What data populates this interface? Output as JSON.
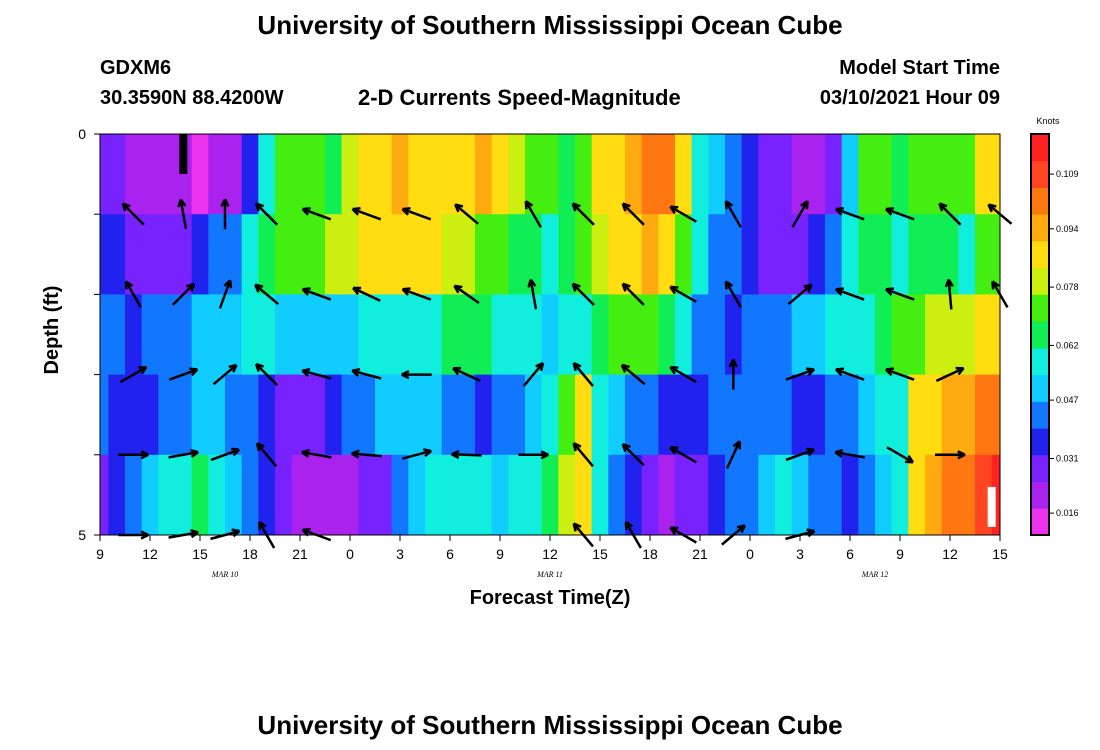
{
  "header": {
    "title_top": "University of Southern Mississippi Ocean Cube",
    "station_id": "GDXM6",
    "station_coords": "30.3590N 88.4200W",
    "chart_title": "2-D Currents Speed-Magnitude",
    "model_start_label": "Model Start Time",
    "model_start_value": "03/10/2021 Hour 09",
    "title_bottom": "University of Southern Mississippi Ocean Cube"
  },
  "colors": {
    "scale": [
      "#ee33ee",
      "#aa22ee",
      "#7722ff",
      "#2222ee",
      "#1177ff",
      "#11ccff",
      "#11eedd",
      "#11ee55",
      "#44ee11",
      "#ccee11",
      "#ffdd11",
      "#ffaa11",
      "#ff7711",
      "#ff4422",
      "#ff2222"
    ],
    "arrow": "#000000"
  },
  "chart_data": {
    "type": "heatmap",
    "title": "2-D Currents Speed-Magnitude",
    "xlabel": "Forecast Time(Z)",
    "ylabel": "Depth (ft)",
    "xlim": [
      0,
      54
    ],
    "ylim": [
      0,
      5
    ],
    "x_ticks": [
      0,
      3,
      6,
      9,
      12,
      15,
      18,
      21,
      24,
      27,
      30,
      33,
      36,
      39,
      42,
      45,
      48,
      51,
      54
    ],
    "x_tick_labels": [
      "9",
      "12",
      "15",
      "18",
      "21",
      "0",
      "3",
      "6",
      "9",
      "12",
      "15",
      "18",
      "21",
      "0",
      "3",
      "6",
      "9",
      "12",
      "15"
    ],
    "day_labels": [
      {
        "x": 7.5,
        "text": "MAR  10"
      },
      {
        "x": 27,
        "text": "MAR  11"
      },
      {
        "x": 46.5,
        "text": "MAR  12"
      }
    ],
    "y_tick_labels": [
      "0",
      "5"
    ],
    "y_minor_ticks": [
      1,
      2,
      3,
      4
    ],
    "colorbar": {
      "label": "Knots",
      "ticks": [
        0.109,
        0.094,
        0.078,
        0.062,
        0.047,
        0.031,
        0.016
      ],
      "tick_labels": [
        "0.109",
        "0.094",
        "0.078",
        "0.062",
        "0.047",
        "0.031",
        "0.016"
      ],
      "range": [
        0.01,
        0.12
      ]
    },
    "depth_levels": [
      0.5,
      1.5,
      2.5,
      3.5,
      4.5
    ],
    "hours": [
      0,
      1,
      2,
      3,
      4,
      5,
      6,
      7,
      8,
      9,
      10,
      11,
      12,
      13,
      14,
      15,
      16,
      17,
      18,
      19,
      20,
      21,
      22,
      23,
      24,
      25,
      26,
      27,
      28,
      29,
      30,
      31,
      32,
      33,
      34,
      35,
      36,
      37,
      38,
      39,
      40,
      41,
      42,
      43,
      44,
      45,
      46,
      47,
      48,
      49,
      50,
      51,
      52,
      53,
      54
    ],
    "speed_knots": [
      [
        0.03,
        0.028,
        0.024,
        0.02,
        0.02,
        0.018,
        0.016,
        0.018,
        0.02,
        0.035,
        0.055,
        0.07,
        0.075,
        0.07,
        0.065,
        0.08,
        0.085,
        0.09,
        0.092,
        0.09,
        0.088,
        0.085,
        0.09,
        0.092,
        0.088,
        0.08,
        0.075,
        0.07,
        0.065,
        0.075,
        0.085,
        0.09,
        0.095,
        0.1,
        0.105,
        0.085,
        0.06,
        0.05,
        0.04,
        0.035,
        0.03,
        0.025,
        0.02,
        0.022,
        0.03,
        0.05,
        0.07,
        0.07,
        0.065,
        0.07,
        0.072,
        0.075,
        0.07,
        0.085,
        0.09
      ],
      [
        0.038,
        0.035,
        0.032,
        0.03,
        0.028,
        0.03,
        0.035,
        0.04,
        0.045,
        0.055,
        0.065,
        0.07,
        0.072,
        0.075,
        0.078,
        0.08,
        0.085,
        0.088,
        0.09,
        0.088,
        0.085,
        0.08,
        0.078,
        0.075,
        0.07,
        0.065,
        0.062,
        0.06,
        0.062,
        0.07,
        0.08,
        0.088,
        0.09,
        0.092,
        0.09,
        0.07,
        0.055,
        0.045,
        0.04,
        0.035,
        0.032,
        0.03,
        0.028,
        0.035,
        0.045,
        0.06,
        0.065,
        0.062,
        0.06,
        0.062,
        0.065,
        0.068,
        0.06,
        0.07,
        0.075
      ],
      [
        0.042,
        0.04,
        0.038,
        0.04,
        0.042,
        0.045,
        0.048,
        0.05,
        0.052,
        0.055,
        0.055,
        0.052,
        0.05,
        0.048,
        0.05,
        0.052,
        0.055,
        0.058,
        0.058,
        0.058,
        0.06,
        0.062,
        0.065,
        0.062,
        0.06,
        0.058,
        0.055,
        0.052,
        0.055,
        0.06,
        0.065,
        0.07,
        0.072,
        0.07,
        0.068,
        0.055,
        0.045,
        0.04,
        0.038,
        0.04,
        0.042,
        0.045,
        0.048,
        0.052,
        0.055,
        0.058,
        0.06,
        0.065,
        0.07,
        0.075,
        0.078,
        0.08,
        0.082,
        0.085,
        0.09
      ],
      [
        0.04,
        0.038,
        0.036,
        0.035,
        0.04,
        0.045,
        0.05,
        0.048,
        0.045,
        0.04,
        0.035,
        0.03,
        0.03,
        0.032,
        0.035,
        0.04,
        0.045,
        0.05,
        0.052,
        0.05,
        0.048,
        0.045,
        0.04,
        0.035,
        0.04,
        0.045,
        0.05,
        0.055,
        0.07,
        0.085,
        0.06,
        0.05,
        0.045,
        0.04,
        0.035,
        0.035,
        0.038,
        0.04,
        0.042,
        0.045,
        0.045,
        0.04,
        0.035,
        0.035,
        0.04,
        0.045,
        0.05,
        0.055,
        0.06,
        0.085,
        0.09,
        0.092,
        0.095,
        0.1,
        0.105
      ],
      [
        0.03,
        0.035,
        0.04,
        0.05,
        0.055,
        0.06,
        0.062,
        0.058,
        0.052,
        0.045,
        0.035,
        0.028,
        0.02,
        0.018,
        0.02,
        0.022,
        0.025,
        0.03,
        0.04,
        0.05,
        0.055,
        0.06,
        0.058,
        0.055,
        0.05,
        0.055,
        0.06,
        0.065,
        0.08,
        0.09,
        0.06,
        0.045,
        0.035,
        0.028,
        0.022,
        0.025,
        0.03,
        0.038,
        0.042,
        0.045,
        0.05,
        0.055,
        0.05,
        0.045,
        0.04,
        0.035,
        0.04,
        0.05,
        0.06,
        0.085,
        0.095,
        0.1,
        0.105,
        0.11,
        0.115
      ]
    ],
    "arrows": [
      {
        "hour": 2,
        "depth": 1,
        "dir": 135
      },
      {
        "hour": 5,
        "depth": 1,
        "dir": 100
      },
      {
        "hour": 7.5,
        "depth": 1,
        "dir": 90
      },
      {
        "hour": 10,
        "depth": 1,
        "dir": 135
      },
      {
        "hour": 13,
        "depth": 1,
        "dir": 160
      },
      {
        "hour": 16,
        "depth": 1,
        "dir": 160
      },
      {
        "hour": 19,
        "depth": 1,
        "dir": 160
      },
      {
        "hour": 22,
        "depth": 1,
        "dir": 140
      },
      {
        "hour": 26,
        "depth": 1,
        "dir": 120
      },
      {
        "hour": 29,
        "depth": 1,
        "dir": 135
      },
      {
        "hour": 32,
        "depth": 1,
        "dir": 135
      },
      {
        "hour": 35,
        "depth": 1,
        "dir": 150
      },
      {
        "hour": 38,
        "depth": 1,
        "dir": 120
      },
      {
        "hour": 42,
        "depth": 1,
        "dir": 60
      },
      {
        "hour": 45,
        "depth": 1,
        "dir": 160
      },
      {
        "hour": 48,
        "depth": 1,
        "dir": 160
      },
      {
        "hour": 51,
        "depth": 1,
        "dir": 135
      },
      {
        "hour": 54,
        "depth": 1,
        "dir": 140
      },
      {
        "hour": 2,
        "depth": 2,
        "dir": 120
      },
      {
        "hour": 5,
        "depth": 2,
        "dir": 45
      },
      {
        "hour": 7.5,
        "depth": 2,
        "dir": 70
      },
      {
        "hour": 10,
        "depth": 2,
        "dir": 140
      },
      {
        "hour": 13,
        "depth": 2,
        "dir": 160
      },
      {
        "hour": 16,
        "depth": 2,
        "dir": 155
      },
      {
        "hour": 19,
        "depth": 2,
        "dir": 160
      },
      {
        "hour": 22,
        "depth": 2,
        "dir": 145
      },
      {
        "hour": 26,
        "depth": 2,
        "dir": 100
      },
      {
        "hour": 29,
        "depth": 2,
        "dir": 135
      },
      {
        "hour": 32,
        "depth": 2,
        "dir": 135
      },
      {
        "hour": 35,
        "depth": 2,
        "dir": 150
      },
      {
        "hour": 38,
        "depth": 2,
        "dir": 120
      },
      {
        "hour": 42,
        "depth": 2,
        "dir": 40
      },
      {
        "hour": 45,
        "depth": 2,
        "dir": 160
      },
      {
        "hour": 48,
        "depth": 2,
        "dir": 160
      },
      {
        "hour": 51,
        "depth": 2,
        "dir": 95
      },
      {
        "hour": 54,
        "depth": 2,
        "dir": 120
      },
      {
        "hour": 2,
        "depth": 3,
        "dir": 30
      },
      {
        "hour": 5,
        "depth": 3,
        "dir": 20
      },
      {
        "hour": 7.5,
        "depth": 3,
        "dir": 40
      },
      {
        "hour": 10,
        "depth": 3,
        "dir": 135
      },
      {
        "hour": 13,
        "depth": 3,
        "dir": 165
      },
      {
        "hour": 16,
        "depth": 3,
        "dir": 165
      },
      {
        "hour": 19,
        "depth": 3,
        "dir": 180
      },
      {
        "hour": 22,
        "depth": 3,
        "dir": 155
      },
      {
        "hour": 26,
        "depth": 3,
        "dir": 50
      },
      {
        "hour": 29,
        "depth": 3,
        "dir": 130
      },
      {
        "hour": 32,
        "depth": 3,
        "dir": 140
      },
      {
        "hour": 35,
        "depth": 3,
        "dir": 150
      },
      {
        "hour": 38,
        "depth": 3,
        "dir": 90
      },
      {
        "hour": 42,
        "depth": 3,
        "dir": 20
      },
      {
        "hour": 45,
        "depth": 3,
        "dir": 160
      },
      {
        "hour": 48,
        "depth": 3,
        "dir": 160
      },
      {
        "hour": 51,
        "depth": 3,
        "dir": 25
      },
      {
        "hour": 2,
        "depth": 4,
        "dir": 0
      },
      {
        "hour": 5,
        "depth": 4,
        "dir": 10
      },
      {
        "hour": 7.5,
        "depth": 4,
        "dir": 20
      },
      {
        "hour": 10,
        "depth": 4,
        "dir": 130
      },
      {
        "hour": 13,
        "depth": 4,
        "dir": 170
      },
      {
        "hour": 16,
        "depth": 4,
        "dir": 175
      },
      {
        "hour": 19,
        "depth": 4,
        "dir": 15
      },
      {
        "hour": 22,
        "depth": 4,
        "dir": 178
      },
      {
        "hour": 26,
        "depth": 4,
        "dir": 0
      },
      {
        "hour": 29,
        "depth": 4,
        "dir": 130
      },
      {
        "hour": 32,
        "depth": 4,
        "dir": 135
      },
      {
        "hour": 35,
        "depth": 4,
        "dir": 150
      },
      {
        "hour": 38,
        "depth": 4,
        "dir": 65
      },
      {
        "hour": 42,
        "depth": 4,
        "dir": 20
      },
      {
        "hour": 45,
        "depth": 4,
        "dir": 170
      },
      {
        "hour": 48,
        "depth": 4,
        "dir": 330
      },
      {
        "hour": 51,
        "depth": 4,
        "dir": 0
      },
      {
        "hour": 2,
        "depth": 5,
        "dir": 0
      },
      {
        "hour": 5,
        "depth": 5,
        "dir": 10
      },
      {
        "hour": 7.5,
        "depth": 5,
        "dir": 15
      },
      {
        "hour": 10,
        "depth": 5,
        "dir": 120
      },
      {
        "hour": 13,
        "depth": 5,
        "dir": 160
      },
      {
        "hour": 29,
        "depth": 5,
        "dir": 130
      },
      {
        "hour": 32,
        "depth": 5,
        "dir": 120
      },
      {
        "hour": 35,
        "depth": 5,
        "dir": 150
      },
      {
        "hour": 38,
        "depth": 5,
        "dir": 40
      },
      {
        "hour": 42,
        "depth": 5,
        "dir": 15
      }
    ],
    "markers": [
      {
        "hour": 5,
        "depth": 0,
        "label": "black-marker"
      },
      {
        "hour": 53.5,
        "depth": 4.5,
        "label": "white-marker"
      }
    ]
  },
  "axes": {
    "xlabel": "Forecast Time(Z)",
    "ylabel": "Depth (ft)"
  }
}
